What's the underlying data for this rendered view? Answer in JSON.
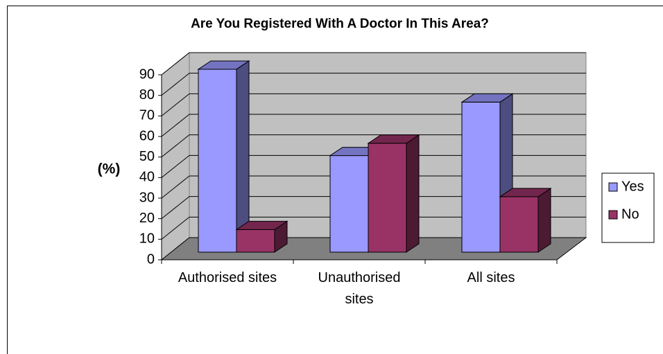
{
  "chart_data": {
    "type": "bar",
    "title": "Are You Registered With A Doctor In This Area?",
    "y_label": "(%)",
    "categories": [
      "Authorised sites",
      "Unauthorised sites",
      "All sites"
    ],
    "series": [
      {
        "name": "Yes",
        "color": "#9999ff",
        "values": [
          89,
          47,
          73
        ]
      },
      {
        "name": "No",
        "color": "#993366",
        "values": [
          11,
          53,
          27
        ]
      }
    ],
    "ylim": [
      0,
      90
    ],
    "yticks": [
      0,
      10,
      20,
      30,
      40,
      50,
      60,
      70,
      80,
      90
    ],
    "grid": true,
    "legend": "right"
  }
}
